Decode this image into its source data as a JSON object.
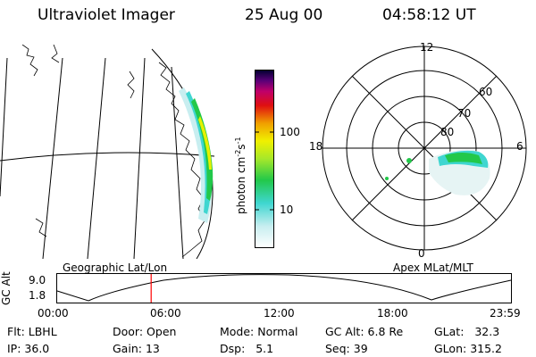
{
  "header": {
    "title": "Ultraviolet Imager",
    "date": "25 Aug 00",
    "time": "04:58:12 UT"
  },
  "colorbar": {
    "label": "photon cm",
    "exp1": "-2",
    "mid": "s",
    "exp2": "-1",
    "tick_100": "100",
    "tick_10": "10",
    "scale": "log"
  },
  "polar_plot": {
    "mlt_12": "12",
    "mlt_18": "18",
    "mlt_6": "6",
    "mlt_0": "0",
    "lat_60": "60",
    "lat_70": "70",
    "lat_80": "80"
  },
  "panel_titles": {
    "left": "Geographic Lat/Lon",
    "right": "Apex MLat/MLT"
  },
  "timeline": {
    "ylabel": "GC Alt",
    "ytick_top": "9.0",
    "ytick_bottom": "1.8",
    "xticks": [
      "00:00",
      "06:00",
      "12:00",
      "18:00",
      "23:59"
    ],
    "current_time_hours": 4.97
  },
  "status": {
    "flt_label": "Flt:",
    "flt_value": "LBHL",
    "ip_label": "IP:",
    "ip_value": "36.0",
    "door_label": "Door:",
    "door_value": "Open",
    "gain_label": "Gain:",
    "gain_value": "13",
    "mode_label": "Mode:",
    "mode_value": "Normal",
    "dsp_label": "Dsp:",
    "dsp_value": "5.1",
    "gcalt_label": "GC Alt:",
    "gcalt_value": "6.8 Re",
    "seq_label": "Seq:",
    "seq_value": "39",
    "glat_label": "GLat:",
    "glat_value": "32.3",
    "glon_label": "GLon:",
    "glon_value": "315.2"
  },
  "colors": {
    "line": "#000000",
    "marker": "#ff0000",
    "aurora_green": "#22c84a",
    "aurora_cyan": "#3fd6d0",
    "aurora_yellow": "#e6f000"
  }
}
